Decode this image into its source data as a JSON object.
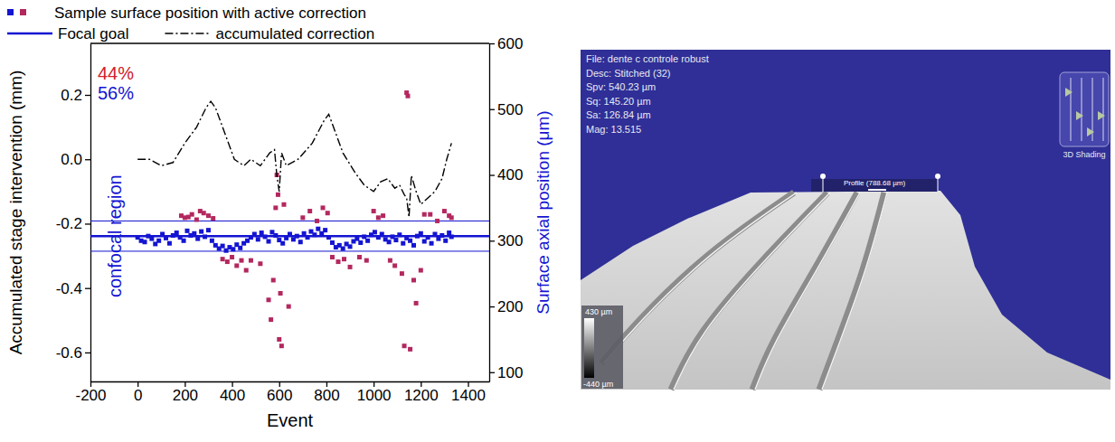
{
  "chart_data": {
    "type": "scatter",
    "legend": "top",
    "xlabel": "Event",
    "ylabel": "Accumulated stage intervention (mm)",
    "y2label": "Surface axial position (μm)",
    "xlim": [
      -200,
      1490
    ],
    "xticks": [
      -200,
      0,
      200,
      400,
      600,
      800,
      1000,
      1200,
      1400
    ],
    "ylim": [
      -0.69,
      0.36
    ],
    "yticks": [
      -0.6,
      -0.4,
      -0.2,
      {
        "value": 0,
        "label": "0.0"
      },
      0.2
    ],
    "y2lim": [
      86,
      600
    ],
    "y2ticks": [
      100,
      200,
      300,
      400,
      500,
      600
    ],
    "series": [
      {
        "name": "Sample surface position with active correction",
        "type": "scatter",
        "marker": "square",
        "color": "#1414d2",
        "axis": "y2",
        "x": [
          0,
          15,
          30,
          45,
          60,
          75,
          90,
          105,
          120,
          135,
          150,
          165,
          180,
          195,
          210,
          225,
          240,
          255,
          270,
          285,
          300,
          315,
          330,
          345,
          360,
          375,
          390,
          405,
          420,
          435,
          450,
          465,
          480,
          495,
          510,
          525,
          540,
          555,
          570,
          585,
          600,
          615,
          630,
          645,
          660,
          675,
          690,
          705,
          720,
          735,
          750,
          765,
          780,
          795,
          810,
          825,
          840,
          855,
          870,
          885,
          900,
          915,
          930,
          945,
          960,
          975,
          990,
          1005,
          1020,
          1035,
          1050,
          1065,
          1080,
          1095,
          1110,
          1125,
          1140,
          1155,
          1170,
          1185,
          1200,
          1215,
          1230,
          1245,
          1260,
          1275,
          1290,
          1305,
          1320,
          1330
        ],
        "values": [
          305,
          300,
          298,
          307,
          303,
          295,
          300,
          310,
          304,
          296,
          308,
          312,
          305,
          300,
          315,
          308,
          311,
          303,
          314,
          306,
          316,
          300,
          293,
          288,
          292,
          285,
          290,
          287,
          294,
          289,
          296,
          300,
          305,
          310,
          302,
          312,
          306,
          299,
          313,
          308,
          301,
          296,
          304,
          310,
          302,
          307,
          298,
          311,
          305,
          314,
          309,
          318,
          311,
          316,
          305,
          297,
          290,
          293,
          288,
          295,
          291,
          299,
          303,
          297,
          306,
          300,
          309,
          313,
          305,
          310,
          302,
          298,
          306,
          301,
          309,
          296,
          304,
          300,
          293,
          307,
          311,
          299,
          305,
          296,
          310,
          303,
          308,
          300,
          312,
          306
        ]
      },
      {
        "type": "scatter",
        "marker": "square",
        "color": "#b3285f",
        "axis": "y2",
        "x": [
          185,
          200,
          215,
          230,
          250,
          265,
          280,
          300,
          320,
          360,
          380,
          400,
          420,
          440,
          460,
          480,
          520,
          555,
          565,
          575,
          585,
          590,
          595,
          600,
          605,
          610,
          620,
          640,
          700,
          730,
          760,
          785,
          805,
          825,
          850,
          875,
          900,
          940,
          970,
          1000,
          1020,
          1040,
          1070,
          1090,
          1120,
          1130,
          1140,
          1145,
          1155,
          1170,
          1180,
          1200,
          1215,
          1240,
          1270,
          1300,
          1320,
          1330
        ],
        "values": [
          338,
          335,
          336,
          340,
          332,
          345,
          342,
          338,
          334,
          272,
          268,
          275,
          262,
          270,
          255,
          270,
          265,
          210,
          180,
          240,
          350,
          400,
          370,
          150,
          220,
          140,
          355,
          200,
          335,
          345,
          330,
          350,
          342,
          275,
          268,
          272,
          260,
          275,
          270,
          345,
          335,
          338,
          270,
          262,
          250,
          140,
          525,
          520,
          135,
          240,
          205,
          255,
          340,
          340,
          330,
          345,
          338,
          335
        ]
      },
      {
        "name": "accumulated correction",
        "type": "line",
        "line_style": "dashdot",
        "color": "#000000",
        "axis": "y",
        "x": [
          0,
          50,
          100,
          150,
          200,
          250,
          290,
          310,
          330,
          370,
          410,
          450,
          480,
          520,
          560,
          580,
          590,
          600,
          610,
          630,
          680,
          740,
          790,
          810,
          830,
          870,
          920,
          960,
          1000,
          1030,
          1060,
          1090,
          1110,
          1130,
          1140,
          1150,
          1160,
          1180,
          1200,
          1230,
          1260,
          1290,
          1310,
          1330
        ],
        "values": [
          0.0,
          0.0,
          -0.02,
          -0.01,
          0.05,
          0.1,
          0.16,
          0.18,
          0.16,
          0.08,
          0.0,
          -0.02,
          0.0,
          -0.02,
          0.02,
          0.03,
          -0.05,
          -0.1,
          0.02,
          -0.02,
          0.0,
          0.05,
          0.12,
          0.14,
          0.1,
          0.02,
          -0.04,
          -0.08,
          -0.1,
          -0.07,
          -0.06,
          -0.09,
          -0.08,
          -0.11,
          -0.12,
          -0.18,
          -0.05,
          -0.1,
          -0.14,
          -0.12,
          -0.1,
          -0.06,
          0.0,
          0.05
        ]
      }
    ],
    "reference_lines": [
      {
        "name": "Focal goal",
        "value": 307,
        "color": "#1414d2",
        "axis": "y2"
      }
    ],
    "regions": [
      {
        "label": "confocal region",
        "range": [
          284,
          330
        ],
        "color": "#1414d2",
        "axis": "y2"
      }
    ],
    "annotations": [
      {
        "text": "44%",
        "color": "#d0202a"
      },
      {
        "text": "56%",
        "color": "#1414d2"
      }
    ]
  },
  "screenshot": {
    "info": [
      "File: dente c controle robust",
      "Desc: Stitched (32)",
      "Spv: 540.23 µm",
      "Sq: 145.20 µm",
      "Sa: 126.84 µm",
      "Mag: 13.515"
    ],
    "profile_label": "Profile (788.68 µm)",
    "widget_label": "3D Shading",
    "color_scale": {
      "max_label": "430 µm",
      "min_label": "-440 µm"
    }
  }
}
